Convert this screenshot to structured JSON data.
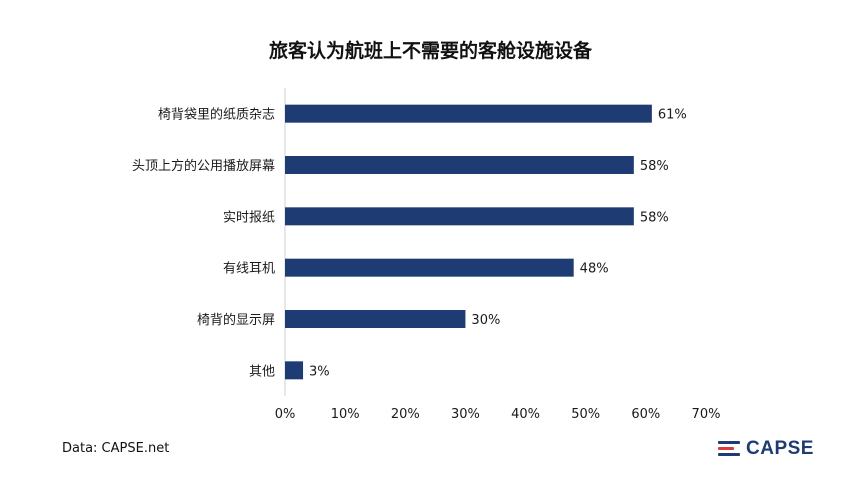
{
  "chart_data": {
    "type": "bar",
    "orientation": "horizontal",
    "title": "旅客认为航班上不需要的客舱设施设备",
    "categories": [
      "椅背袋里的纸质杂志",
      "头顶上方的公用播放屏幕",
      "实时报纸",
      "有线耳机",
      "椅背的显示屏",
      "其他"
    ],
    "values": [
      61,
      58,
      58,
      48,
      30,
      3
    ],
    "value_labels": [
      "61%",
      "58%",
      "58%",
      "48%",
      "30%",
      "3%"
    ],
    "xlim": [
      0,
      70
    ],
    "xticks": [
      0,
      10,
      20,
      30,
      40,
      50,
      60,
      70
    ],
    "xtick_labels": [
      "0%",
      "10%",
      "20%",
      "30%",
      "40%",
      "50%",
      "60%",
      "70%"
    ],
    "xlabel": "",
    "ylabel": "",
    "grid": false,
    "bar_color": "#1f3b73"
  },
  "footer": {
    "source": "Data: CAPSE.net",
    "logo_text": "CAPSE"
  },
  "colors": {
    "bar": "#1f3b73",
    "logo_red": "#d93a3a",
    "logo_blue": "#1f3b73"
  }
}
